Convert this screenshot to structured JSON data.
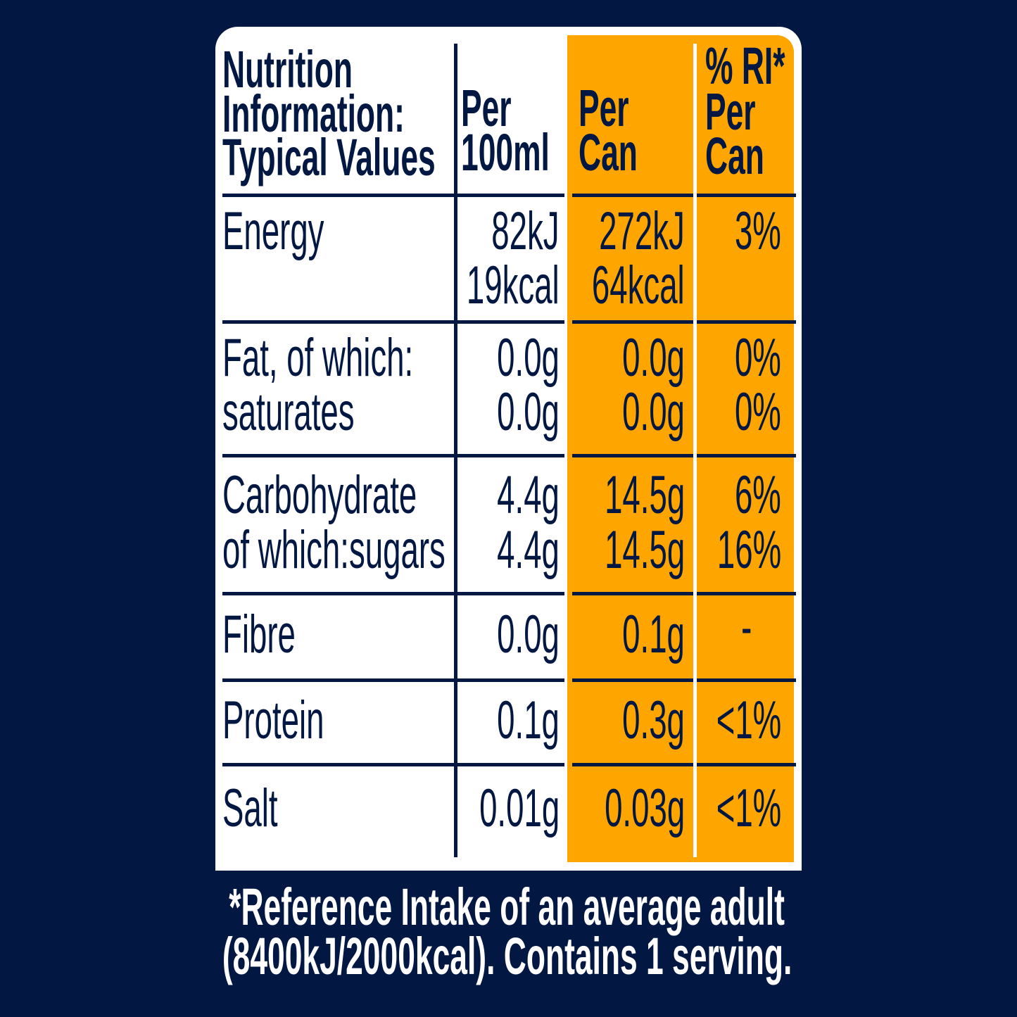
{
  "colors": {
    "background": "#021843",
    "card": "#ffffff",
    "highlight": "#FFA500",
    "text": "#021843",
    "footer_text": "#ffffff"
  },
  "header": {
    "title_lines": [
      "Nutrition",
      "Information:",
      "Typical Values"
    ],
    "per_100ml_lines": [
      "Per",
      "100ml"
    ],
    "per_can_lines": [
      "Per",
      "Can"
    ],
    "ri_lines": [
      "% RI*",
      "Per",
      "Can"
    ]
  },
  "rows": [
    {
      "labels": [
        "Energy"
      ],
      "per_100ml": [
        "82kJ",
        "19kcal"
      ],
      "per_can": [
        "272kJ",
        "64kcal"
      ],
      "ri": [
        "3%"
      ]
    },
    {
      "labels": [
        "Fat, of which:",
        "saturates"
      ],
      "per_100ml": [
        "0.0g",
        "0.0g"
      ],
      "per_can": [
        "0.0g",
        "0.0g"
      ],
      "ri": [
        "0%",
        "0%"
      ]
    },
    {
      "labels": [
        "Carbohydrate",
        "of which:sugars"
      ],
      "per_100ml": [
        "4.4g",
        "4.4g"
      ],
      "per_can": [
        "14.5g",
        "14.5g"
      ],
      "ri": [
        "6%",
        "16%"
      ]
    },
    {
      "labels": [
        "Fibre"
      ],
      "per_100ml": [
        "0.0g"
      ],
      "per_can": [
        "0.1g"
      ],
      "ri": [
        "-"
      ]
    },
    {
      "labels": [
        "Protein"
      ],
      "per_100ml": [
        "0.1g"
      ],
      "per_can": [
        "0.3g"
      ],
      "ri": [
        "<1%"
      ]
    },
    {
      "labels": [
        "Salt"
      ],
      "per_100ml": [
        "0.01g"
      ],
      "per_can": [
        "0.03g"
      ],
      "ri": [
        "<1%"
      ]
    }
  ],
  "footer": {
    "lines": [
      "*Reference Intake of an average adult",
      "(8400kJ/2000kcal). Contains 1 serving."
    ]
  }
}
